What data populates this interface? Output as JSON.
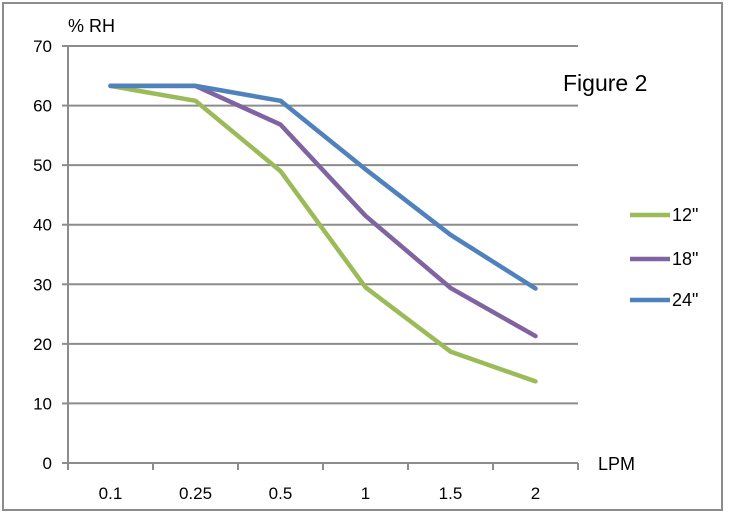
{
  "chart_data": {
    "type": "line",
    "title": "Figure 2",
    "xlabel": "LPM",
    "ylabel": "% RH",
    "categories": [
      "0.1",
      "0.25",
      "0.5",
      "1",
      "1.5",
      "2"
    ],
    "series": [
      {
        "name": "12\"",
        "color": "#9bbb59",
        "values": [
          63.3,
          60.8,
          49.0,
          29.5,
          18.7,
          13.7
        ]
      },
      {
        "name": "18\"",
        "color": "#8064a2",
        "values": [
          63.3,
          63.3,
          56.8,
          41.5,
          29.4,
          21.3
        ]
      },
      {
        "name": "24\"",
        "color": "#4f81bd",
        "values": [
          63.3,
          63.3,
          60.8,
          49.3,
          38.3,
          29.3
        ]
      }
    ],
    "ylim": [
      0,
      70
    ],
    "yticks": [
      0,
      10,
      20,
      30,
      40,
      50,
      60,
      70
    ],
    "grid": true,
    "legend_position": "right"
  }
}
